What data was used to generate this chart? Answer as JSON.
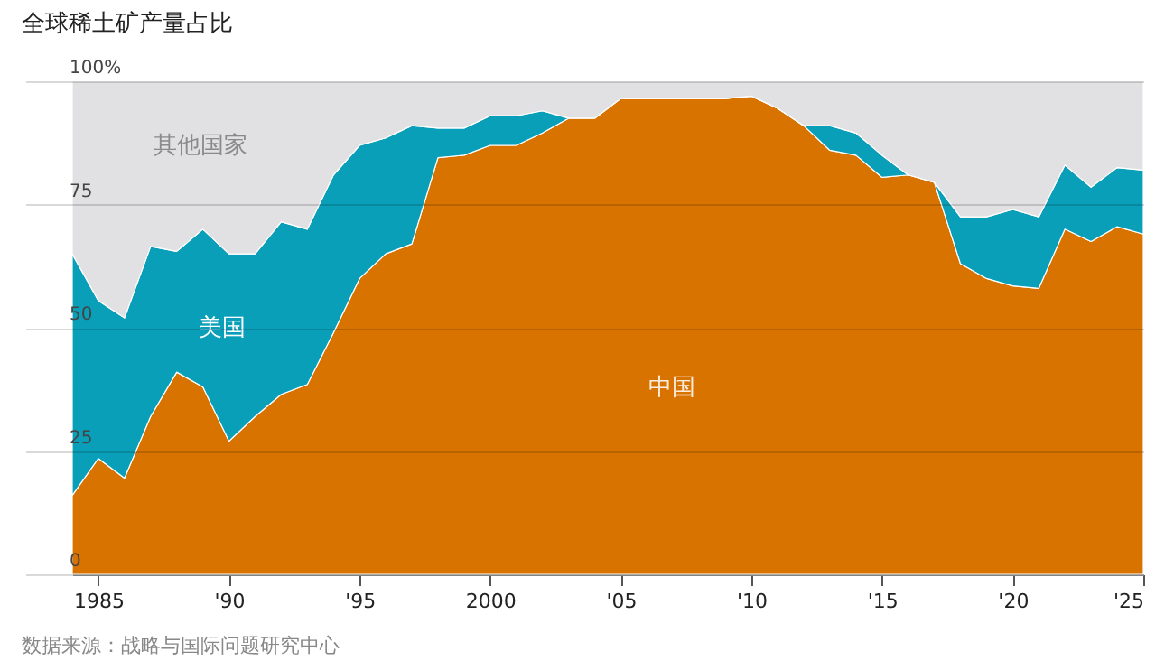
{
  "chart_data": {
    "type": "area",
    "stacked": true,
    "title": "全球稀土矿产量占比",
    "annotations": [
      "数据来源：战略与国际问题研究中心"
    ],
    "x": [
      1984,
      1985,
      1986,
      1987,
      1988,
      1989,
      1990,
      1991,
      1992,
      1993,
      1994,
      1995,
      1996,
      1997,
      1998,
      1999,
      2000,
      2001,
      2002,
      2003,
      2004,
      2005,
      2006,
      2007,
      2008,
      2009,
      2010,
      2011,
      2012,
      2013,
      2014,
      2015,
      2016,
      2017,
      2018,
      2019,
      2020,
      2021,
      2022,
      2023,
      2024,
      2025
    ],
    "series": [
      {
        "name": "中国",
        "color": "#d97300",
        "values": [
          16,
          23.5,
          19.5,
          32,
          41,
          38,
          27,
          32,
          36.5,
          38.5,
          49,
          60,
          65,
          67,
          84.5,
          85,
          87,
          87,
          89.5,
          92.5,
          92.5,
          96.5,
          96.5,
          96.5,
          96.5,
          96.5,
          97,
          94.5,
          91,
          86,
          85,
          80.5,
          81,
          79.5,
          63,
          60,
          58.5,
          58,
          70,
          67.5,
          70.5,
          69
        ]
      },
      {
        "name": "美国",
        "color": "#0a9fb9",
        "values": [
          49,
          32,
          32.5,
          34.5,
          24.5,
          32,
          38,
          33,
          35,
          31.5,
          32,
          27,
          23.5,
          24,
          6,
          5.5,
          6,
          6,
          4.5,
          0,
          0,
          0,
          0,
          0,
          0,
          0,
          0,
          0,
          0,
          5,
          4.5,
          4.5,
          0,
          0,
          9.5,
          12.5,
          15.5,
          14.5,
          13,
          11,
          12,
          13
        ]
      },
      {
        "name": "其他国家",
        "color": "#e1e1e3",
        "values": [
          35,
          44.5,
          48,
          33.5,
          34.5,
          30,
          35,
          35,
          28.5,
          30,
          19,
          13,
          11.5,
          9,
          9.5,
          9.5,
          7,
          7,
          6,
          7.5,
          7.5,
          3.5,
          3.5,
          3.5,
          3.5,
          3.5,
          3,
          5.5,
          9,
          9,
          10.5,
          15,
          19,
          20.5,
          27.5,
          27.5,
          26,
          27.5,
          17,
          21.5,
          17.5,
          18
        ]
      }
    ],
    "xlim": [
      1984,
      2025
    ],
    "xticks": [
      {
        "value": 1985,
        "label": "1985"
      },
      {
        "value": 1990,
        "label": "'90"
      },
      {
        "value": 1995,
        "label": "'95"
      },
      {
        "value": 2000,
        "label": "2000"
      },
      {
        "value": 2005,
        "label": "'05"
      },
      {
        "value": 2010,
        "label": "'10"
      },
      {
        "value": 2015,
        "label": "'15"
      },
      {
        "value": 2020,
        "label": "'20"
      },
      {
        "value": 2025,
        "label": "'25"
      }
    ],
    "ylim": [
      0,
      100
    ],
    "yticks": [
      0,
      25,
      50,
      75,
      {
        "value": 100,
        "label": "100%"
      }
    ],
    "grid": "y"
  }
}
